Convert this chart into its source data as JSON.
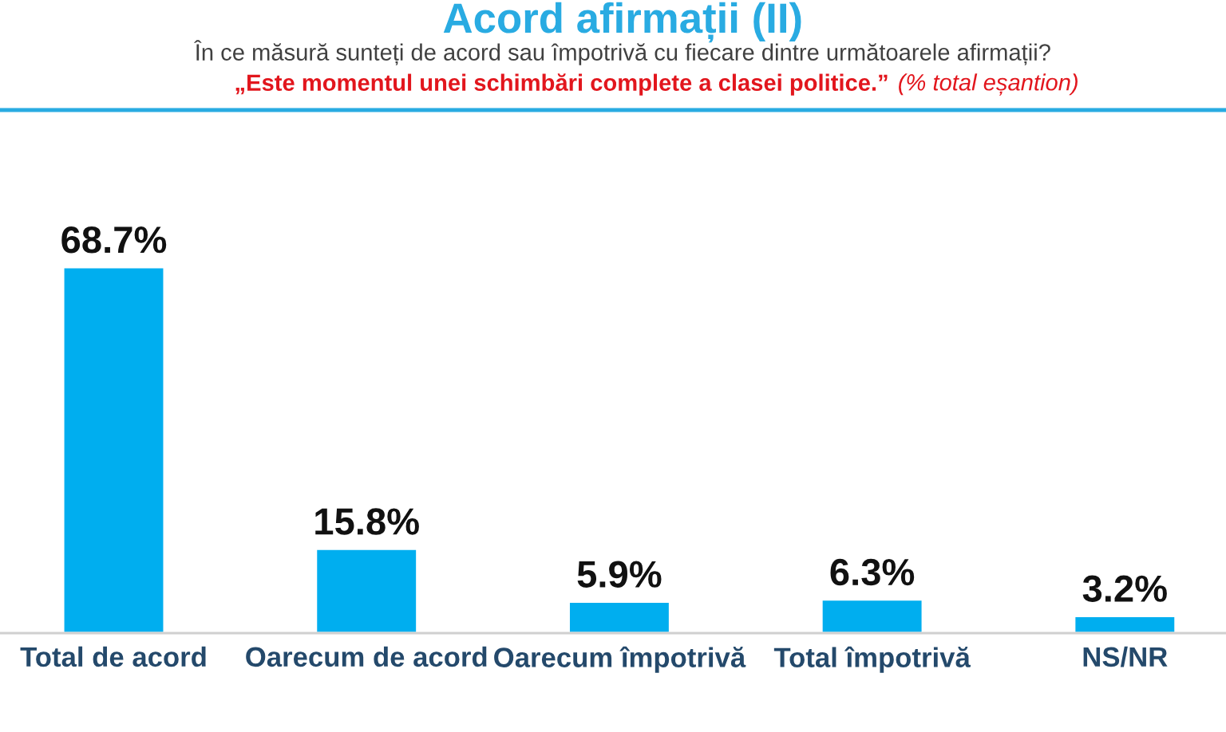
{
  "chart_data": {
    "type": "bar",
    "title": "Acord afirmații (II)",
    "subtitle": "În ce măsură sunteți de acord sau împotrivă cu fiecare dintre următoarele afirmații?",
    "annotations": [
      "„Este momentul unei schimbări complete a clasei politice.”",
      "(% total eșantion)"
    ],
    "categories": [
      "Total de acord",
      "Oarecum de acord",
      "Oarecum împotrivă",
      "Total împotrivă",
      "NS/NR"
    ],
    "values": [
      68.7,
      15.8,
      5.9,
      6.3,
      3.2
    ],
    "color": "#00aeef",
    "value_labels": [
      "68.7%",
      "15.8%",
      "5.9%",
      "6.3%",
      "3.2%"
    ],
    "tick_labels": "x"
  }
}
